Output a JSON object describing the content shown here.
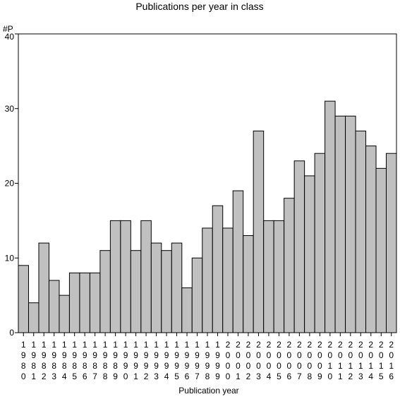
{
  "chart_data": {
    "type": "bar",
    "title": "Publications per year in class",
    "xlabel": "Publication year",
    "ylabel": "#P",
    "ylim": [
      0,
      40
    ],
    "yticks": [
      0,
      10,
      20,
      30,
      40
    ],
    "grid": false,
    "bar_color": "#c0c0c0",
    "categories": [
      "1980",
      "1981",
      "1982",
      "1983",
      "1984",
      "1985",
      "1986",
      "1987",
      "1988",
      "1989",
      "1990",
      "1991",
      "1992",
      "1993",
      "1994",
      "1995",
      "1996",
      "1997",
      "1998",
      "1999",
      "2000",
      "2001",
      "2002",
      "2003",
      "2004",
      "2005",
      "2006",
      "2007",
      "2008",
      "2009",
      "2010",
      "2011",
      "2012",
      "2013",
      "2014",
      "2015",
      "2016"
    ],
    "values": [
      9,
      4,
      12,
      7,
      5,
      8,
      8,
      8,
      11,
      15,
      15,
      11,
      15,
      12,
      11,
      12,
      6,
      10,
      14,
      17,
      14,
      19,
      13,
      27,
      15,
      15,
      18,
      23,
      21,
      24,
      31,
      29,
      29,
      27,
      25,
      22,
      24
    ]
  }
}
